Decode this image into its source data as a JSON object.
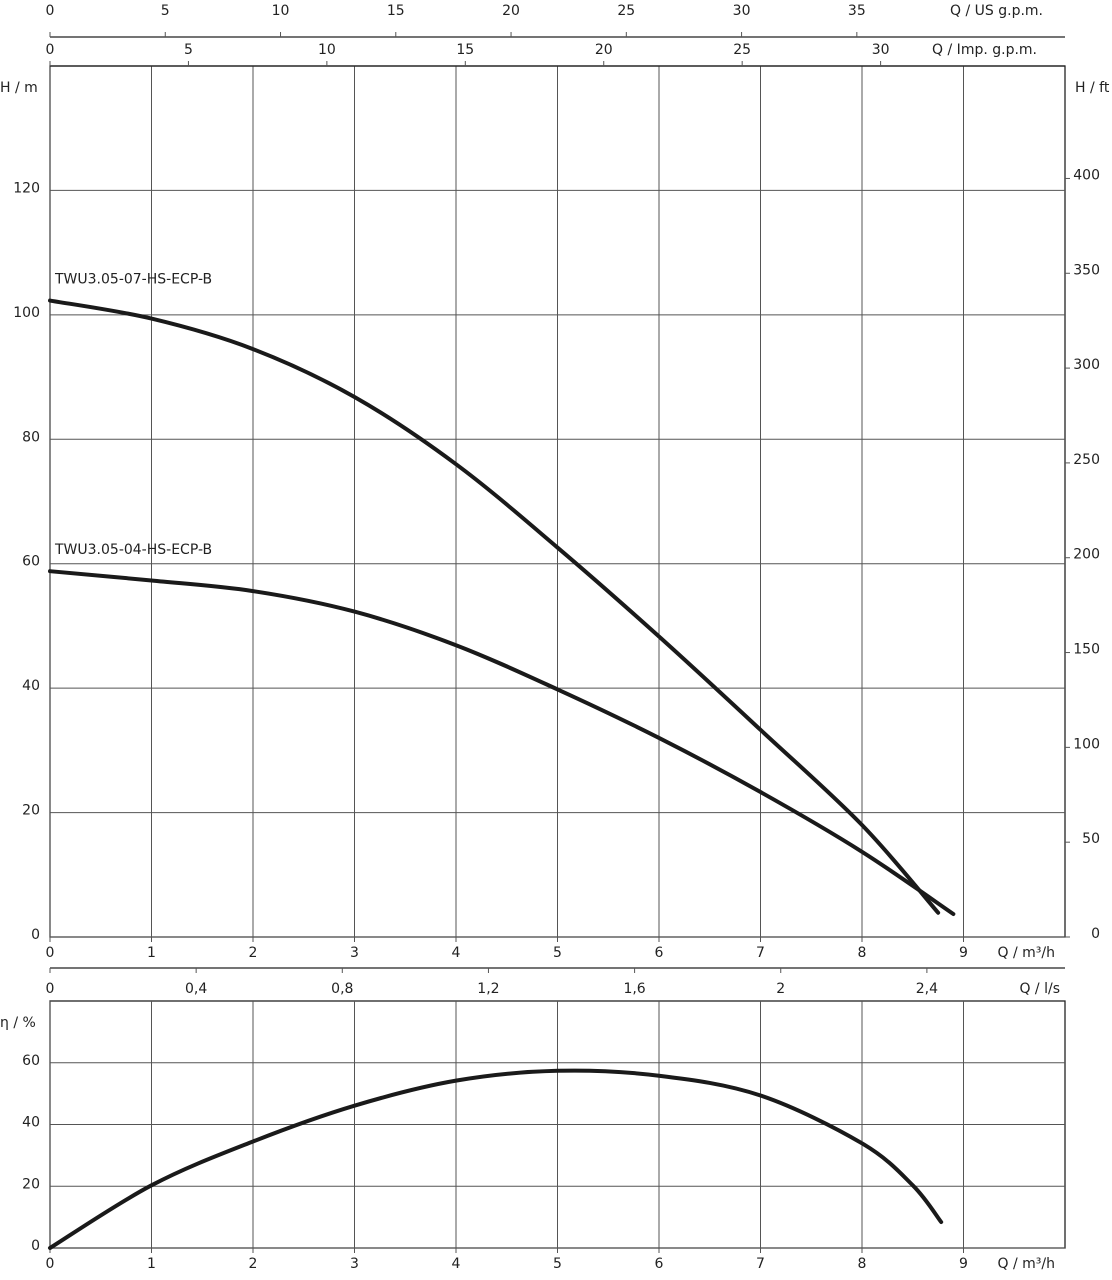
{
  "chart_data": [
    {
      "type": "line",
      "xlabel": "Q / m³/h",
      "xlim": [
        0,
        10
      ],
      "xticks": [
        0,
        1,
        2,
        3,
        4,
        5,
        6,
        7,
        8,
        9
      ],
      "ylabel": "H / m",
      "ylim": [
        0,
        140
      ],
      "yticks": [
        0,
        20,
        40,
        60,
        80,
        100,
        120
      ],
      "y2label": "H / ft",
      "y2lim": [
        0,
        459.3
      ],
      "y2ticks": [
        0,
        50,
        100,
        150,
        200,
        250,
        300,
        350,
        400
      ],
      "grid": true,
      "secondary_x_axes": [
        {
          "position": "top",
          "label": "Q / US g.p.m.",
          "lim": [
            0,
            44.03
          ],
          "ticks": [
            0,
            5,
            10,
            15,
            20,
            25,
            30,
            35
          ]
        },
        {
          "position": "top",
          "label": "Q / Imp. g.p.m.",
          "lim": [
            0,
            36.66
          ],
          "ticks": [
            0,
            5,
            10,
            15,
            20,
            25,
            30
          ]
        },
        {
          "position": "bottom",
          "label": "Q / l/s",
          "lim": [
            0,
            2.778
          ],
          "ticks": [
            0,
            {
              "value": 0.4,
              "label": "0,4"
            },
            {
              "value": 0.8,
              "label": "0,8"
            },
            {
              "value": 1.2,
              "label": "1,2"
            },
            {
              "value": 1.6,
              "label": "1,6"
            },
            2,
            {
              "value": 2.4,
              "label": "2,4"
            }
          ]
        }
      ],
      "series": [
        {
          "name": "TWU3.05-07-HS-ECP-B",
          "color": "#1a1a1a",
          "x": [
            0,
            1,
            2,
            3,
            4,
            5,
            6,
            7,
            8,
            8.75
          ],
          "values": [
            102.3,
            99.4,
            94.5,
            86.8,
            76,
            62.6,
            48.3,
            33.3,
            18,
            3.9
          ]
        },
        {
          "name": "TWU3.05-04-HS-ECP-B",
          "color": "#1a1a1a",
          "x": [
            0,
            1,
            2,
            3,
            4,
            5,
            6,
            7,
            8,
            8.9
          ],
          "values": [
            58.8,
            57.3,
            55.6,
            52.3,
            46.9,
            39.8,
            32,
            23.3,
            13.7,
            3.7
          ]
        }
      ]
    },
    {
      "type": "line",
      "xlabel": "Q / m³/h",
      "xlim": [
        0,
        10
      ],
      "xticks": [
        0,
        1,
        2,
        3,
        4,
        5,
        6,
        7,
        8,
        9
      ],
      "ylabel": "η / %",
      "ylim": [
        0,
        80
      ],
      "yticks": [
        0,
        20,
        40,
        60
      ],
      "grid": true,
      "series": [
        {
          "color": "#1a1a1a",
          "x": [
            0,
            1,
            2,
            3,
            4,
            5,
            6,
            7,
            8,
            8.5,
            8.78
          ],
          "values": [
            0,
            20.3,
            34.5,
            46.1,
            54.2,
            57.4,
            55.8,
            49.4,
            33.9,
            20.3,
            8.4
          ]
        }
      ]
    }
  ]
}
